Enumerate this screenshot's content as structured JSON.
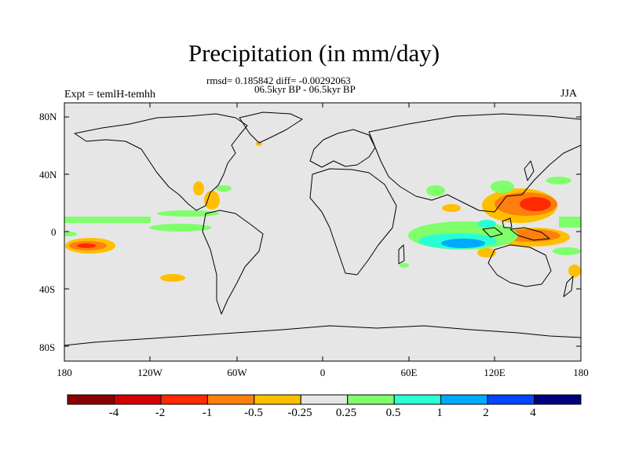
{
  "title": "Precipitation (in mm/day)",
  "stats": "rmsd= 0.185842 diff= -0.00292063",
  "period": "06.5kyr BP - 06.5kyr BP",
  "experiment": "Expt = temlH-temhh",
  "season": "JJA",
  "lat_labels": [
    "80N",
    "40N",
    "0",
    "40S",
    "80S"
  ],
  "lon_labels": [
    "180",
    "120W",
    "60W",
    "0",
    "60E",
    "120E",
    "180"
  ],
  "colorbar": {
    "labels": [
      "-4",
      "-2",
      "-1",
      "-0.5",
      "-0.25",
      "0.25",
      "0.5",
      "1",
      "2",
      "4"
    ],
    "colors": [
      "#8b0000",
      "#d40000",
      "#ff2a00",
      "#ff7f0e",
      "#ffbf00",
      "#e6e6e6",
      "#7fff6a",
      "#2affd4",
      "#00aaff",
      "#0047ff",
      "#00007f"
    ]
  },
  "colors": {
    "ocean": "#e6e6e6",
    "coast": "#000000"
  }
}
